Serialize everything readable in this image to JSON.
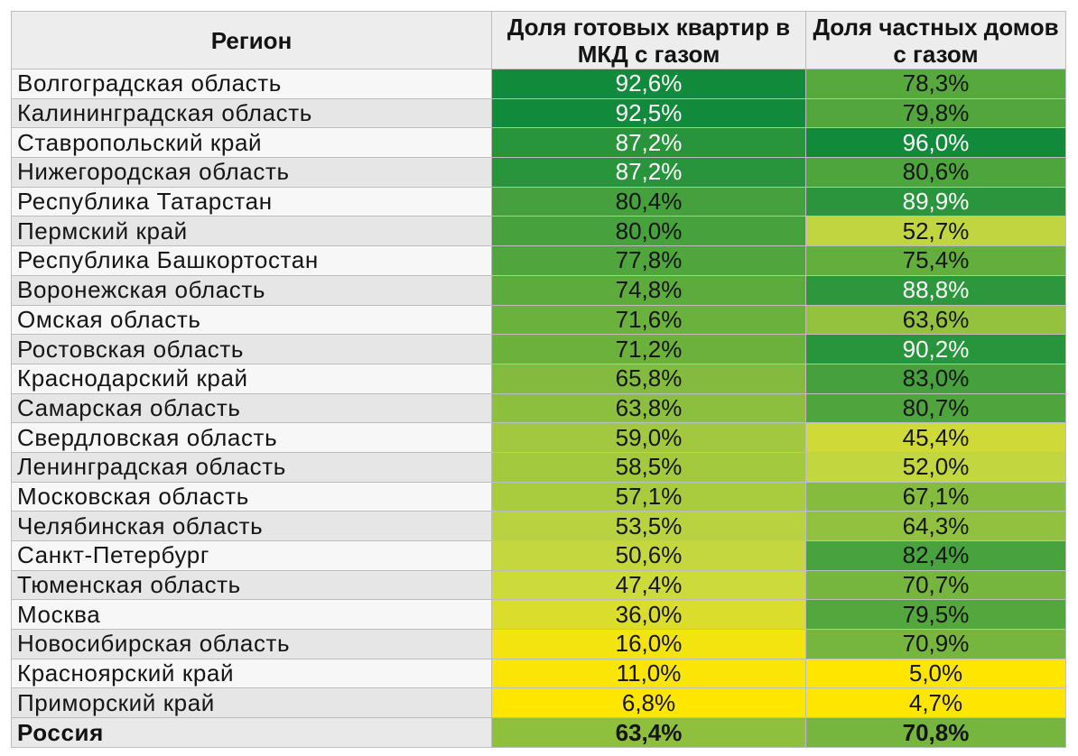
{
  "chart_data": {
    "type": "heatmap",
    "title": "",
    "columns": [
      "Регион",
      "Доля готовых квартир в МКД с газом",
      "Доля частных домов с газом"
    ],
    "header": {
      "region": "Регион",
      "col_a": "Доля готовых квартир в МКД с газом",
      "col_b": "Доля частных домов с газом"
    },
    "rows": [
      {
        "region": "Волгоградская область",
        "a": "92,6%",
        "b": "78,3%",
        "a_val": 92.6,
        "b_val": 78.3
      },
      {
        "region": "Калининградская область",
        "a": "92,5%",
        "b": "79,8%",
        "a_val": 92.5,
        "b_val": 79.8
      },
      {
        "region": "Ставропольский край",
        "a": "87,2%",
        "b": "96,0%",
        "a_val": 87.2,
        "b_val": 96.0
      },
      {
        "region": "Нижегородская область",
        "a": "87,2%",
        "b": "80,6%",
        "a_val": 87.2,
        "b_val": 80.6
      },
      {
        "region": "Республика Татарстан",
        "a": "80,4%",
        "b": "89,9%",
        "a_val": 80.4,
        "b_val": 89.9
      },
      {
        "region": "Пермский край",
        "a": "80,0%",
        "b": "52,7%",
        "a_val": 80.0,
        "b_val": 52.7
      },
      {
        "region": "Республика Башкортостан",
        "a": "77,8%",
        "b": "75,4%",
        "a_val": 77.8,
        "b_val": 75.4
      },
      {
        "region": "Воронежская область",
        "a": "74,8%",
        "b": "88,8%",
        "a_val": 74.8,
        "b_val": 88.8
      },
      {
        "region": "Омская область",
        "a": "71,6%",
        "b": "63,6%",
        "a_val": 71.6,
        "b_val": 63.6
      },
      {
        "region": "Ростовская область",
        "a": "71,2%",
        "b": "90,2%",
        "a_val": 71.2,
        "b_val": 90.2
      },
      {
        "region": "Краснодарский край",
        "a": "65,8%",
        "b": "83,0%",
        "a_val": 65.8,
        "b_val": 83.0
      },
      {
        "region": "Самарская область",
        "a": "63,8%",
        "b": "80,7%",
        "a_val": 63.8,
        "b_val": 80.7
      },
      {
        "region": "Свердловская область",
        "a": "59,0%",
        "b": "45,4%",
        "a_val": 59.0,
        "b_val": 45.4
      },
      {
        "region": "Ленинградская область",
        "a": "58,5%",
        "b": "52,0%",
        "a_val": 58.5,
        "b_val": 52.0
      },
      {
        "region": "Московская область",
        "a": "57,1%",
        "b": "67,1%",
        "a_val": 57.1,
        "b_val": 67.1
      },
      {
        "region": "Челябинская область",
        "a": "53,5%",
        "b": "64,3%",
        "a_val": 53.5,
        "b_val": 64.3
      },
      {
        "region": "Санкт-Петербург",
        "a": "50,6%",
        "b": "82,4%",
        "a_val": 50.6,
        "b_val": 82.4
      },
      {
        "region": "Тюменская область",
        "a": "47,4%",
        "b": "70,7%",
        "a_val": 47.4,
        "b_val": 70.7
      },
      {
        "region": "Москва",
        "a": "36,0%",
        "b": "79,5%",
        "a_val": 36.0,
        "b_val": 79.5
      },
      {
        "region": "Новосибирская область",
        "a": "16,0%",
        "b": "70,9%",
        "a_val": 16.0,
        "b_val": 70.9
      },
      {
        "region": "Красноярский край",
        "a": "11,0%",
        "b": "5,0%",
        "a_val": 11.0,
        "b_val": 5.0
      },
      {
        "region": "Приморский край",
        "a": "6,8%",
        "b": "4,7%",
        "a_val": 6.8,
        "b_val": 4.7
      }
    ],
    "total": {
      "region": "Россия",
      "a": "63,4%",
      "b": "70,8%",
      "a_val": 63.4,
      "b_val": 70.8
    },
    "color_scale": {
      "low": "#ffe600",
      "mid": "#c9d93f",
      "high": "#118a3c",
      "col_a_range": [
        6.8,
        92.6
      ],
      "col_b_range": [
        4.7,
        96.0
      ]
    }
  }
}
